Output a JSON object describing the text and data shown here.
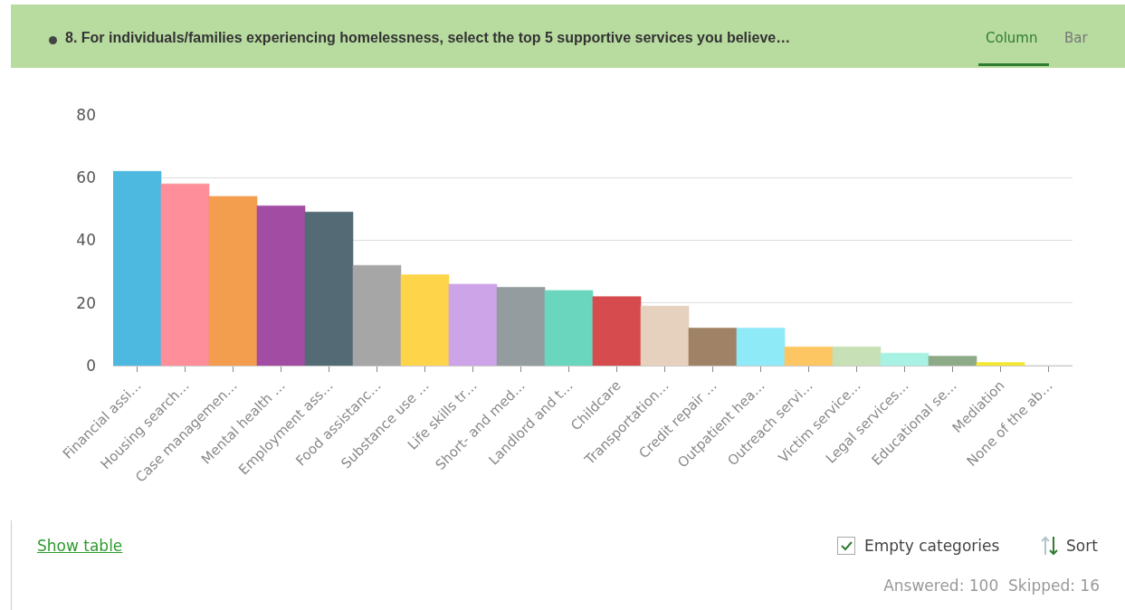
{
  "chart_data": {
    "type": "bar",
    "title": "8. For individuals/families experiencing homelessness, select the top 5 supportive services you believe…",
    "categories": [
      "Financial assi…",
      "Housing search…",
      "Case managemen…",
      "Mental health …",
      "Employment ass…",
      "Food assistanc…",
      "Substance use …",
      "Life skills tr…",
      "Short- and med…",
      "Landlord and t…",
      "Childcare",
      "Transportation…",
      "Credit repair …",
      "Outpatient hea…",
      "Outreach servi…",
      "Victim service…",
      "Legal services…",
      "Educational se…",
      "Mediation",
      "None of the ab…"
    ],
    "values": [
      62,
      58,
      54,
      51,
      49,
      32,
      29,
      26,
      25,
      24,
      22,
      19,
      12,
      12,
      6,
      6,
      4,
      3,
      1,
      0
    ],
    "colors": [
      "#4db8e0",
      "#fe8e9a",
      "#f39d4f",
      "#a34ca3",
      "#546b75",
      "#a6a6a6",
      "#fed54a",
      "#cea4e8",
      "#949c9f",
      "#6bd6be",
      "#d64b4e",
      "#e5d1bd",
      "#a08367",
      "#8feaf8",
      "#fec663",
      "#c7e0b5",
      "#a7f2e3",
      "#8dab88",
      "#f4e830",
      "#d0d0d0"
    ],
    "ylim": [
      0,
      80
    ],
    "yticks": [
      0,
      20,
      40,
      60,
      80
    ],
    "grid": "y",
    "annotations": [
      "Column",
      "Bar",
      "Show table",
      "Empty categories",
      "Sort",
      "Answered: 100  Skipped: 16"
    ]
  }
}
